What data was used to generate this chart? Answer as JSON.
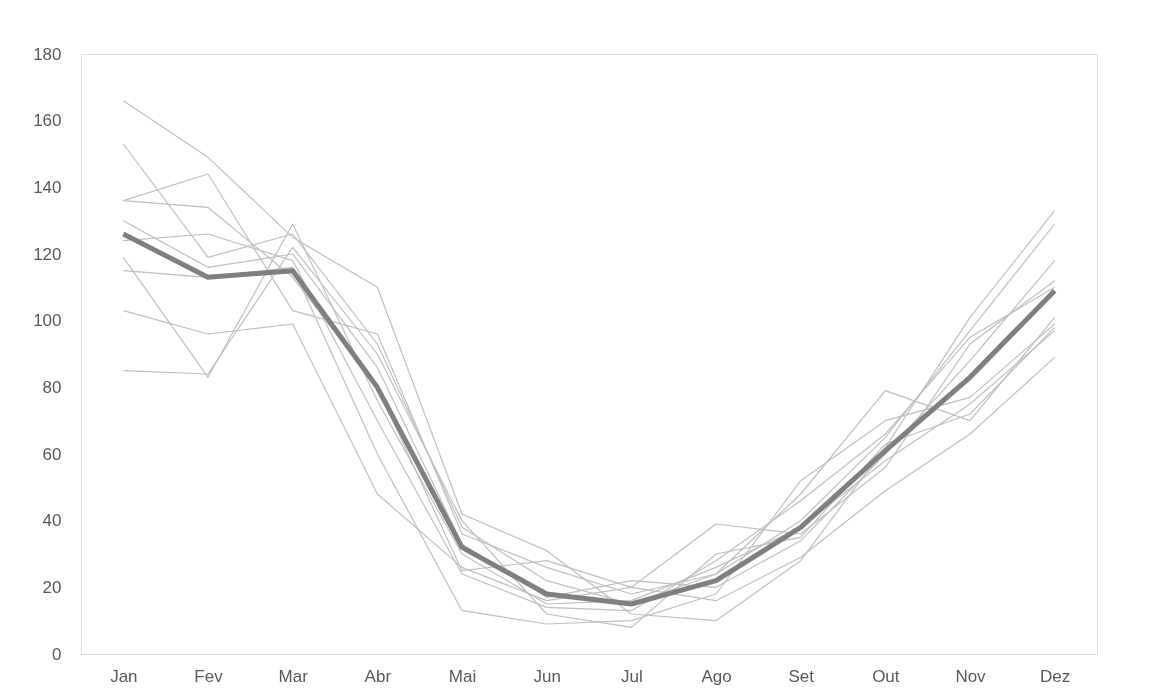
{
  "chart_data": {
    "type": "line",
    "categories": [
      "Jan",
      "Fev",
      "Mar",
      "Abr",
      "Mai",
      "Jun",
      "Jul",
      "Ago",
      "Set",
      "Out",
      "Nov",
      "Dez"
    ],
    "series": [
      {
        "color": "#bfbfbf",
        "values": [
          166,
          149,
          125,
          110,
          42,
          31,
          12,
          10,
          28,
          62,
          101,
          133
        ]
      },
      {
        "color": "#bfbfbf",
        "values": [
          153,
          119,
          126,
          93,
          38,
          22,
          15,
          24,
          40,
          65,
          97,
          129
        ]
      },
      {
        "color": "#bfbfbf",
        "values": [
          136,
          144,
          103,
          96,
          36,
          26,
          18,
          24,
          48,
          79,
          70,
          101
        ]
      },
      {
        "color": "#bfbfbf",
        "values": [
          136,
          134,
          113,
          80,
          25,
          28,
          20,
          39,
          36,
          56,
          93,
          112
        ]
      },
      {
        "color": "#bfbfbf",
        "values": [
          130,
          116,
          120,
          86,
          33,
          17,
          22,
          20,
          34,
          60,
          88,
          118
        ]
      },
      {
        "color": "#bfbfbf",
        "values": [
          124,
          126,
          118,
          70,
          24,
          14,
          13,
          28,
          46,
          66,
          95,
          110
        ]
      },
      {
        "color": "#bfbfbf",
        "values": [
          119,
          83,
          129,
          76,
          30,
          15,
          16,
          26,
          38,
          58,
          75,
          97
        ]
      },
      {
        "color": "#bfbfbf",
        "values": [
          115,
          113,
          116,
          60,
          13,
          9,
          10,
          18,
          52,
          70,
          77,
          99
        ]
      },
      {
        "color": "#bfbfbf",
        "values": [
          103,
          96,
          99,
          48,
          26,
          16,
          20,
          16,
          29,
          49,
          66,
          89
        ]
      },
      {
        "color": "#bfbfbf",
        "values": [
          85,
          84,
          122,
          90,
          40,
          12,
          8,
          30,
          35,
          63,
          72,
          98
        ]
      },
      {
        "color": "#7f7f7f",
        "values": [
          126,
          113,
          115,
          80,
          32,
          18,
          15,
          22,
          38,
          61,
          83,
          109
        ]
      }
    ],
    "ylim": [
      0,
      180
    ],
    "yticks": [
      0,
      20,
      40,
      60,
      80,
      100,
      120,
      140,
      160,
      180
    ],
    "grid": false,
    "legend": false,
    "marker": "none",
    "line_style": "solid"
  }
}
